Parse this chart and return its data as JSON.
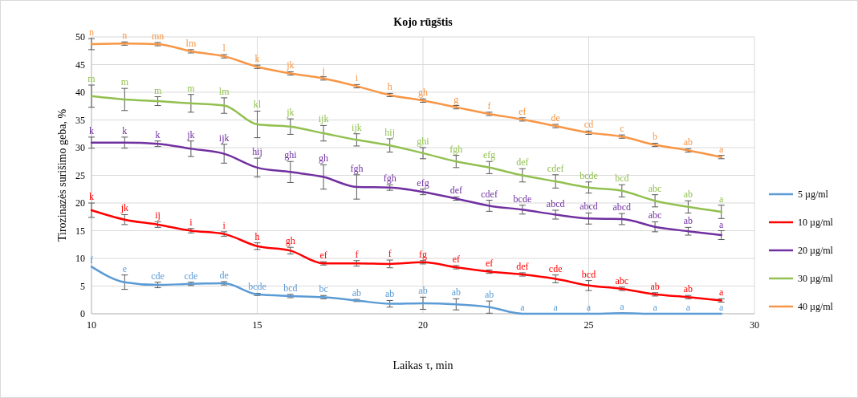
{
  "chart_data": {
    "type": "line",
    "title": "Kojo rūgštis",
    "xlabel": "Laikas τ, min",
    "ylabel": "Tirozinazės surišimo geba, %",
    "x": [
      10,
      11,
      12,
      13,
      14,
      15,
      16,
      17,
      18,
      19,
      20,
      21,
      22,
      23,
      24,
      25,
      26,
      27,
      28,
      29
    ],
    "xlim": [
      10,
      30
    ],
    "xticks": [
      10,
      15,
      20,
      25,
      30
    ],
    "ylim": [
      0,
      50
    ],
    "yticks": [
      0,
      5,
      10,
      15,
      20,
      25,
      30,
      35,
      40,
      45,
      50
    ],
    "grid": true,
    "legend": "right",
    "marker": "none",
    "line_style": "solid",
    "series": [
      {
        "name": "5 µg/ml",
        "color": "#5b9bd5",
        "values": [
          8.5,
          5.7,
          5.2,
          5.4,
          5.5,
          3.5,
          3.2,
          3.0,
          2.4,
          1.8,
          1.9,
          1.7,
          1.2,
          0,
          0,
          0,
          0.1,
          0,
          0,
          0
        ],
        "errors": [
          null,
          1.3,
          0.5,
          0.3,
          0.3,
          0.2,
          0.3,
          0.3,
          0.2,
          0.6,
          1.1,
          1.0,
          1.1,
          null,
          null,
          null,
          null,
          null,
          null,
          null
        ],
        "value_labels": [
          "f",
          "e",
          "cde",
          "cde",
          "de",
          "bcde",
          "bcd",
          "bc",
          "ab",
          "ab",
          "ab",
          "ab",
          "ab",
          "a",
          "a",
          "a",
          "a",
          "a",
          "a",
          "a"
        ]
      },
      {
        "name": "10 µg/ml",
        "color": "#ff0000",
        "values": [
          18.7,
          17.0,
          16.1,
          15.0,
          14.4,
          12.2,
          11.4,
          9.1,
          9.1,
          9.0,
          9.3,
          8.4,
          7.6,
          7.1,
          6.3,
          5.1,
          4.5,
          3.5,
          3.0,
          2.4
        ],
        "errors": [
          1.3,
          0.9,
          0.5,
          0.4,
          0.4,
          0.6,
          0.6,
          0.3,
          0.5,
          0.7,
          0.3,
          0.3,
          0.3,
          0.3,
          0.7,
          0.9,
          0.3,
          0.3,
          0.3,
          0.3
        ],
        "value_labels": [
          "k",
          "jk",
          "ij",
          "i",
          "i",
          "h",
          "gh",
          "ef",
          "f",
          "f",
          "fg",
          "ef",
          "ef",
          "def",
          "cde",
          "bcd",
          "abc",
          "ab",
          "ab",
          "a"
        ]
      },
      {
        "name": "20 µg/ml",
        "color": "#7030a0",
        "values": [
          30.9,
          30.9,
          30.7,
          29.8,
          28.9,
          26.4,
          25.6,
          24.7,
          22.9,
          22.8,
          22.0,
          20.8,
          19.5,
          18.8,
          17.9,
          17.2,
          17.1,
          15.7,
          14.9,
          14.2
        ],
        "errors": [
          1.0,
          1.0,
          0.5,
          1.4,
          1.7,
          1.7,
          1.9,
          2.2,
          2.2,
          0.5,
          0.5,
          0.3,
          1.0,
          0.8,
          0.8,
          1.0,
          1.0,
          0.9,
          0.7,
          0.8
        ],
        "value_labels": [
          "k",
          "k",
          "k",
          "jk",
          "ijk",
          "hij",
          "ghi",
          "gh",
          "fgh",
          "fgh",
          "efg",
          "def",
          "cdef",
          "bcde",
          "abcd",
          "abcd",
          "abcd",
          "abc",
          "ab",
          "a"
        ]
      },
      {
        "name": "30 µg/ml",
        "color": "#92c050",
        "values": [
          39.3,
          38.7,
          38.4,
          38.0,
          37.6,
          34.2,
          33.8,
          32.6,
          31.4,
          30.4,
          29.0,
          27.5,
          26.4,
          25.0,
          23.9,
          22.8,
          22.2,
          20.4,
          19.3,
          18.4
        ],
        "errors": [
          2.0,
          2.0,
          0.8,
          1.6,
          1.4,
          2.4,
          1.4,
          1.4,
          1.1,
          1.2,
          1.0,
          1.1,
          1.1,
          1.2,
          1.2,
          1.0,
          1.1,
          1.1,
          1.1,
          1.2
        ],
        "value_labels": [
          "m",
          "m",
          "m",
          "m",
          "lm",
          "kl",
          "jk",
          "ijk",
          "ijk",
          "hij",
          "ghi",
          "fgh",
          "efg",
          "def",
          "cdef",
          "bcde",
          "bcd",
          "abc",
          "ab",
          "a"
        ]
      },
      {
        "name": "40 µg/ml",
        "color": "#f79646",
        "values": [
          48.7,
          48.8,
          48.7,
          47.4,
          46.5,
          44.6,
          43.4,
          42.5,
          41.1,
          39.5,
          38.5,
          37.3,
          36.1,
          35.1,
          33.9,
          32.7,
          32.0,
          30.5,
          29.5,
          28.3
        ],
        "errors": [
          1.0,
          0.3,
          0.3,
          0.3,
          0.3,
          0.3,
          0.3,
          0.3,
          0.3,
          0.3,
          0.3,
          0.3,
          0.3,
          0.3,
          0.3,
          0.3,
          0.3,
          0.3,
          0.3,
          0.3
        ],
        "value_labels": [
          "n",
          "n",
          "mn",
          "lm",
          "l",
          "k",
          "jk",
          "j",
          "i",
          "h",
          "gh",
          "g",
          "f",
          "ef",
          "de",
          "cd",
          "c",
          "b",
          "ab",
          "a"
        ]
      }
    ]
  }
}
